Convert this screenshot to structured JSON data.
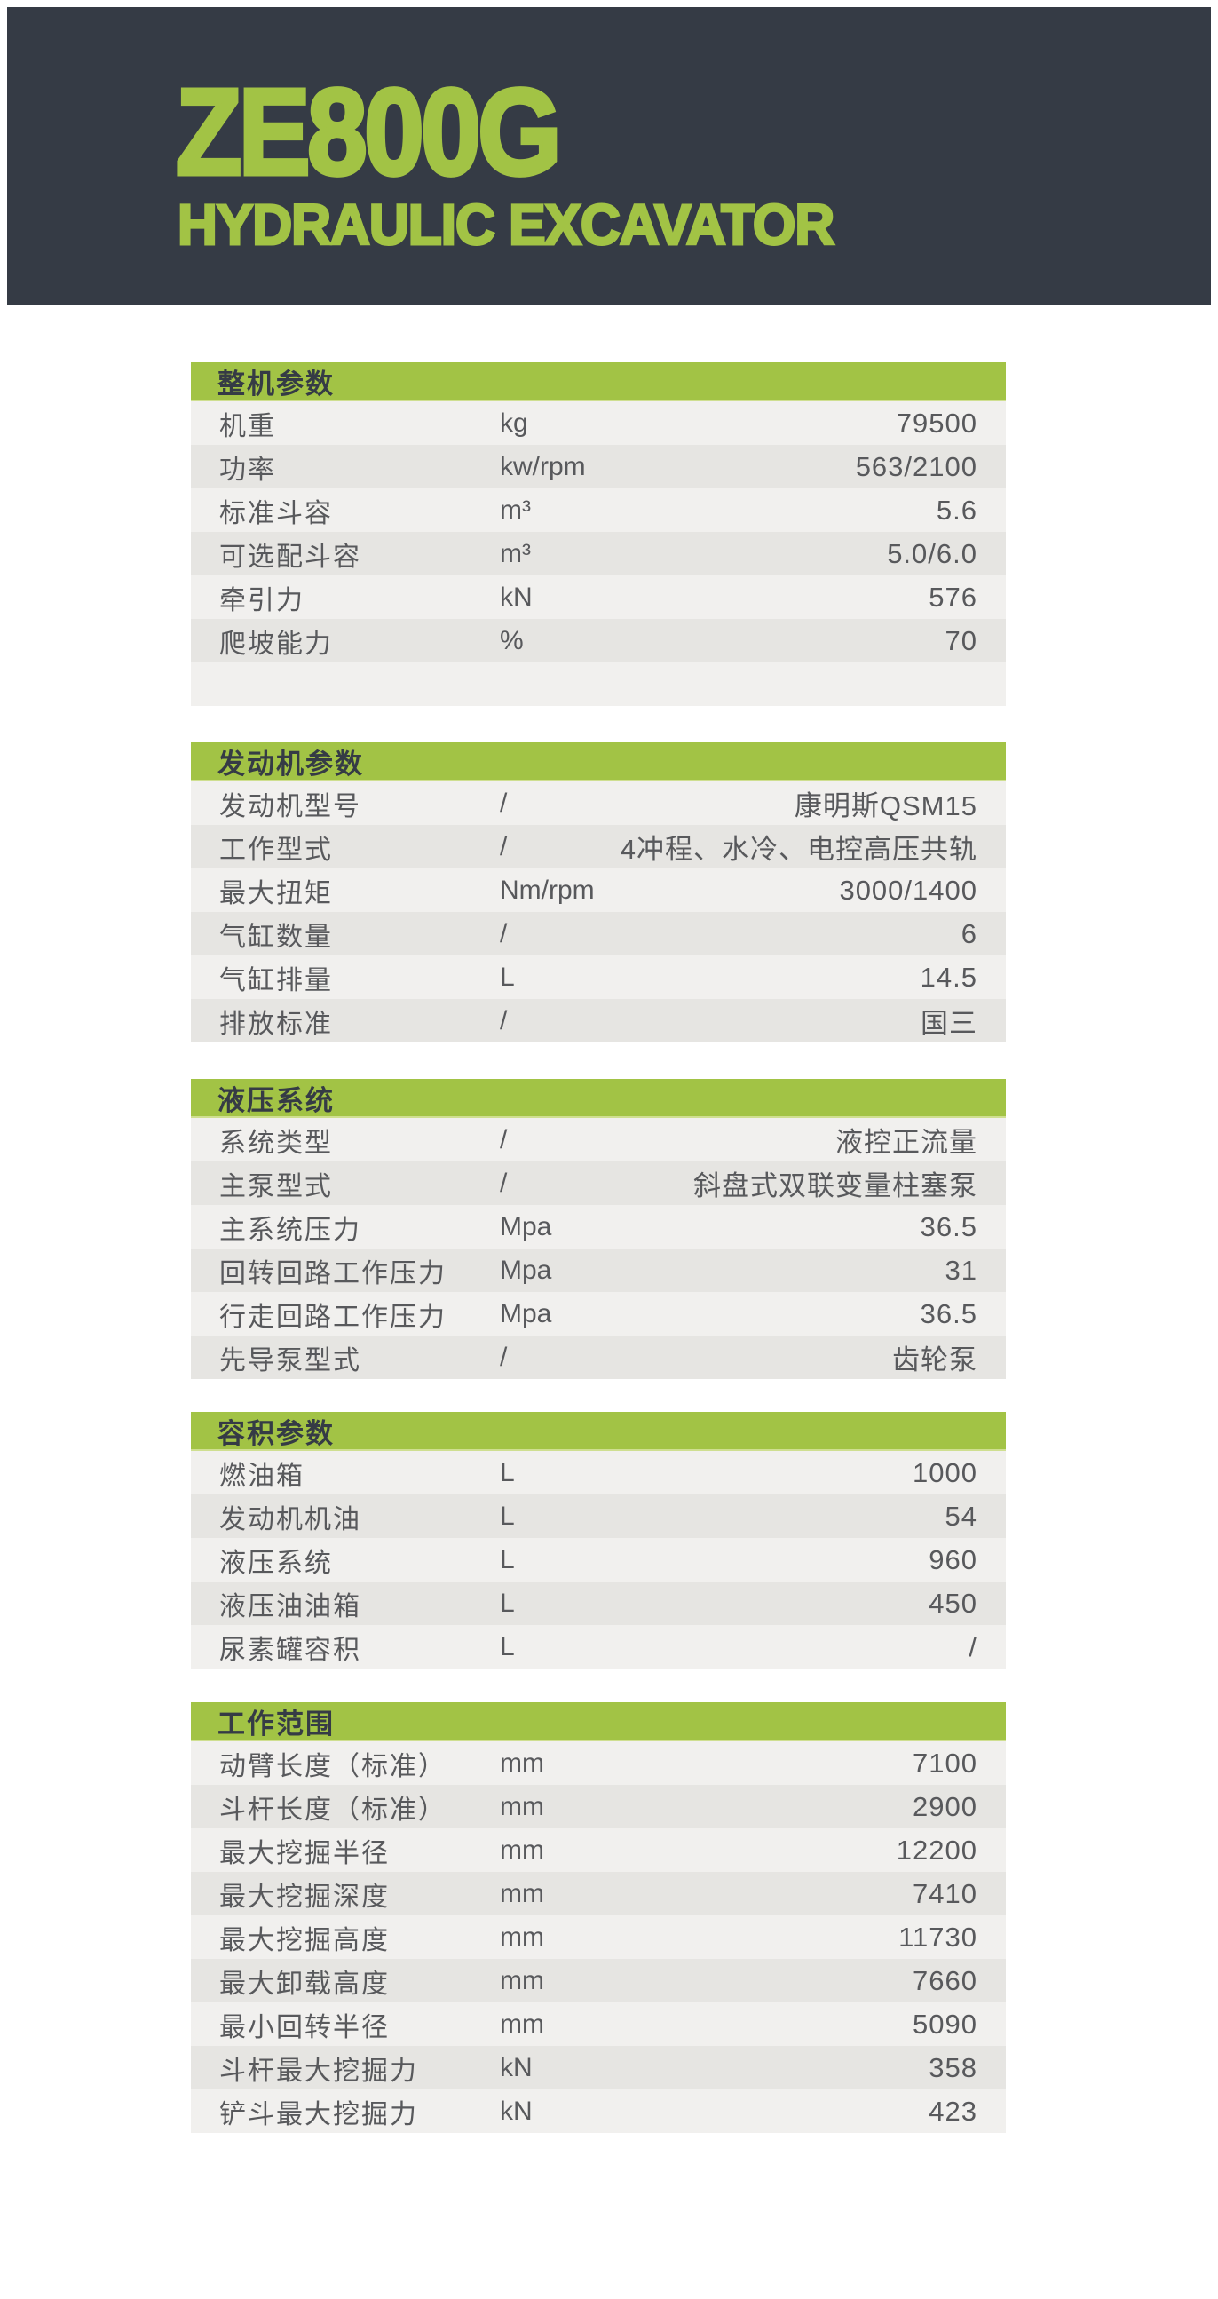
{
  "hero": {
    "model": "ZE800G",
    "product_type": "HYDRAULIC EXCAVATOR"
  },
  "colors": {
    "accent_green": "#a2c345",
    "header_dark": "#353b45",
    "row_light": "#f1f0ee",
    "row_dark": "#e6e5e2",
    "text_gray": "#58595c"
  },
  "sections": [
    {
      "title": "整机参数",
      "rows": [
        {
          "label": "机重",
          "unit": "kg",
          "value": "79500"
        },
        {
          "label": "功率",
          "unit": "kw/rpm",
          "value": "563/2100"
        },
        {
          "label": "标准斗容",
          "unit": "m³",
          "value": "5.6"
        },
        {
          "label": "可选配斗容",
          "unit": "m³",
          "value": "5.0/6.0"
        },
        {
          "label": "牵引力",
          "unit": "kN",
          "value": "576"
        },
        {
          "label": "爬坡能力",
          "unit": "%",
          "value": "70"
        },
        {
          "label": "",
          "unit": "",
          "value": ""
        }
      ]
    },
    {
      "title": "发动机参数",
      "rows": [
        {
          "label": "发动机型号",
          "unit": "/",
          "value": "康明斯QSM15"
        },
        {
          "label": "工作型式",
          "unit": "/",
          "value": "4冲程、水冷、电控高压共轨"
        },
        {
          "label": "最大扭矩",
          "unit": "Nm/rpm",
          "value": "3000/1400"
        },
        {
          "label": "气缸数量",
          "unit": "/",
          "value": "6"
        },
        {
          "label": "气缸排量",
          "unit": "L",
          "value": "14.5"
        },
        {
          "label": "排放标准",
          "unit": "/",
          "value": "国三"
        }
      ]
    },
    {
      "title": "液压系统",
      "rows": [
        {
          "label": "系统类型",
          "unit": "/",
          "value": "液控正流量"
        },
        {
          "label": "主泵型式",
          "unit": "/",
          "value": "斜盘式双联变量柱塞泵"
        },
        {
          "label": "主系统压力",
          "unit": "Mpa",
          "value": "36.5"
        },
        {
          "label": "回转回路工作压力",
          "unit": "Mpa",
          "value": "31"
        },
        {
          "label": "行走回路工作压力",
          "unit": "Mpa",
          "value": "36.5"
        },
        {
          "label": "先导泵型式",
          "unit": "/",
          "value": "齿轮泵"
        }
      ]
    },
    {
      "title": "容积参数",
      "rows": [
        {
          "label": "燃油箱",
          "unit": "L",
          "value": "1000"
        },
        {
          "label": "发动机机油",
          "unit": "L",
          "value": "54"
        },
        {
          "label": "液压系统",
          "unit": "L",
          "value": "960"
        },
        {
          "label": "液压油油箱",
          "unit": "L",
          "value": "450"
        },
        {
          "label": "尿素罐容积",
          "unit": "L",
          "value": "/"
        }
      ]
    },
    {
      "title": "工作范围",
      "rows": [
        {
          "label": "动臂长度（标准）",
          "unit": "mm",
          "value": "7100"
        },
        {
          "label": "斗杆长度（标准）",
          "unit": "mm",
          "value": "2900"
        },
        {
          "label": "最大挖掘半径",
          "unit": "mm",
          "value": "12200"
        },
        {
          "label": "最大挖掘深度",
          "unit": "mm",
          "value": "7410"
        },
        {
          "label": "最大挖掘高度",
          "unit": "mm",
          "value": "11730"
        },
        {
          "label": "最大卸载高度",
          "unit": "mm",
          "value": "7660"
        },
        {
          "label": "最小回转半径",
          "unit": "mm",
          "value": "5090"
        },
        {
          "label": "斗杆最大挖掘力",
          "unit": "kN",
          "value": "358"
        },
        {
          "label": "铲斗最大挖掘力",
          "unit": "kN",
          "value": "423"
        }
      ]
    }
  ]
}
